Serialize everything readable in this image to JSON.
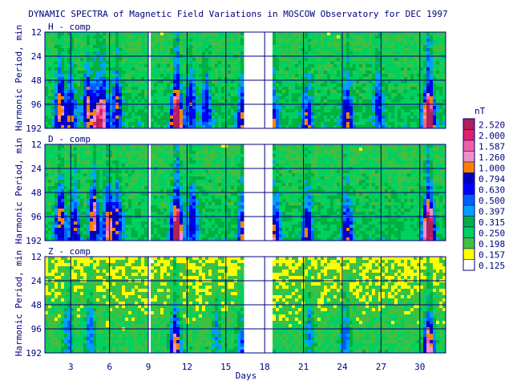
{
  "chart_data": {
    "type": "heatmap",
    "title": "DYNAMIC SPECTRA of Magnetic Field Variations in MOSCOW Observatory for DEC 1997",
    "xlabel": "Days",
    "ylabel": "Harmonic Period, min",
    "x_range_days": [
      1,
      32
    ],
    "x_ticks": [
      3,
      6,
      9,
      12,
      15,
      18,
      21,
      24,
      27,
      30
    ],
    "y_ticks": [
      12,
      24,
      48,
      96,
      192
    ],
    "y_scale": "log2",
    "grid": true,
    "data_gaps_days": [
      [
        8.9,
        9.1
      ],
      [
        16.5,
        18.5
      ]
    ],
    "panels": [
      {
        "label": "H - comp",
        "events": [
          {
            "day": 2.2,
            "strength": 0.55,
            "peak_period_min": 96
          },
          {
            "day": 3.0,
            "strength": 0.45,
            "peak_period_min": 150
          },
          {
            "day": 4.3,
            "strength": 0.5,
            "peak_period_min": 96
          },
          {
            "day": 5.0,
            "strength": 0.6,
            "peak_period_min": 192
          },
          {
            "day": 5.5,
            "strength": 0.55,
            "peak_period_min": 120
          },
          {
            "day": 6.6,
            "strength": 0.45,
            "peak_period_min": 96
          },
          {
            "day": 11.2,
            "strength": 1.0,
            "peak_period_min": 150
          },
          {
            "day": 12.3,
            "strength": 0.4,
            "peak_period_min": 96
          },
          {
            "day": 13.5,
            "strength": 0.35,
            "peak_period_min": 96
          },
          {
            "day": 16.3,
            "strength": 0.45,
            "peak_period_min": 150
          },
          {
            "day": 18.7,
            "strength": 0.4,
            "peak_period_min": 192
          },
          {
            "day": 21.3,
            "strength": 0.45,
            "peak_period_min": 192
          },
          {
            "day": 24.4,
            "strength": 0.45,
            "peak_period_min": 150
          },
          {
            "day": 26.8,
            "strength": 0.35,
            "peak_period_min": 96
          },
          {
            "day": 30.7,
            "strength": 1.0,
            "peak_period_min": 150
          }
        ]
      },
      {
        "label": "D - comp",
        "events": [
          {
            "day": 2.2,
            "strength": 0.5,
            "peak_period_min": 96
          },
          {
            "day": 3.3,
            "strength": 0.45,
            "peak_period_min": 150
          },
          {
            "day": 4.8,
            "strength": 0.6,
            "peak_period_min": 96
          },
          {
            "day": 5.9,
            "strength": 0.55,
            "peak_period_min": 120
          },
          {
            "day": 6.6,
            "strength": 0.4,
            "peak_period_min": 96
          },
          {
            "day": 11.2,
            "strength": 0.95,
            "peak_period_min": 150
          },
          {
            "day": 12.4,
            "strength": 0.4,
            "peak_period_min": 96
          },
          {
            "day": 16.3,
            "strength": 0.4,
            "peak_period_min": 150
          },
          {
            "day": 18.8,
            "strength": 0.45,
            "peak_period_min": 150
          },
          {
            "day": 21.3,
            "strength": 0.45,
            "peak_period_min": 150
          },
          {
            "day": 24.4,
            "strength": 0.4,
            "peak_period_min": 150
          },
          {
            "day": 30.7,
            "strength": 1.0,
            "peak_period_min": 150
          }
        ]
      },
      {
        "label": "Z - comp",
        "events": [
          {
            "day": 2.8,
            "strength": 0.3,
            "peak_period_min": 96
          },
          {
            "day": 4.5,
            "strength": 0.3,
            "peak_period_min": 96
          },
          {
            "day": 11.1,
            "strength": 0.65,
            "peak_period_min": 150
          },
          {
            "day": 14.3,
            "strength": 0.25,
            "peak_period_min": 96
          },
          {
            "day": 16.2,
            "strength": 0.3,
            "peak_period_min": 150
          },
          {
            "day": 21.5,
            "strength": 0.25,
            "peak_period_min": 96
          },
          {
            "day": 24.3,
            "strength": 0.3,
            "peak_period_min": 120
          },
          {
            "day": 30.7,
            "strength": 0.7,
            "peak_period_min": 150
          }
        ]
      }
    ],
    "colorbar": {
      "unit": "nT",
      "levels": [
        "2.520",
        "2.000",
        "1.587",
        "1.260",
        "1.000",
        "0.794",
        "0.630",
        "0.500",
        "0.397",
        "0.315",
        "0.250",
        "0.198",
        "0.157",
        "0.125"
      ],
      "colors": [
        "#b0205a",
        "#e0206e",
        "#f060a0",
        "#f090c8",
        "#ff8000",
        "#0000c0",
        "#0000ff",
        "#0060ff",
        "#00a0ff",
        "#00b040",
        "#00d060",
        "#40c040",
        "#ffff00",
        "#ffffff"
      ]
    }
  }
}
